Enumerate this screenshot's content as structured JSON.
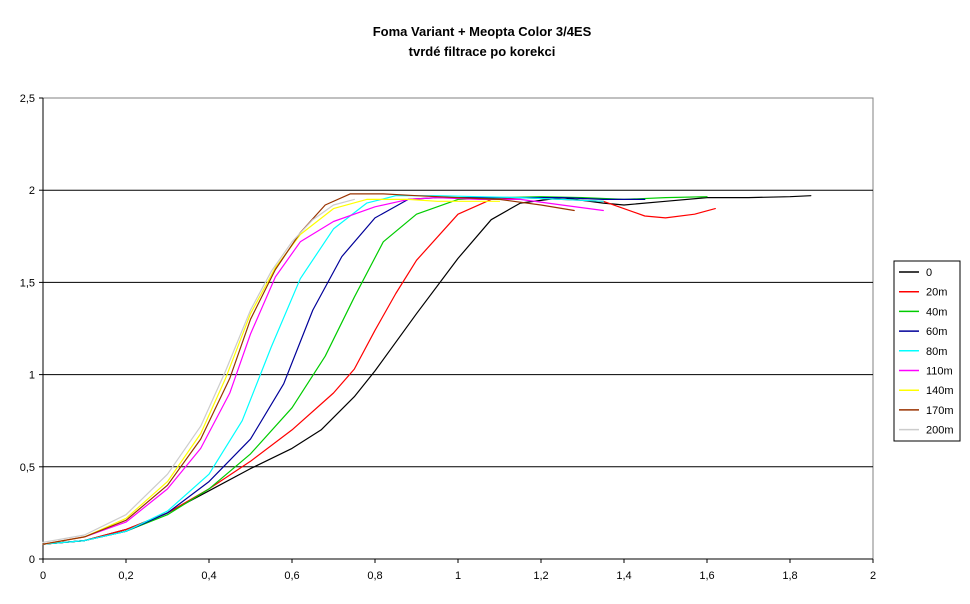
{
  "chart_data": {
    "type": "line",
    "title": "Foma Variant + Meopta Color 3/4ES",
    "subtitle": "tvrdé filtrace po korekci",
    "xlabel": "",
    "ylabel": "",
    "xlim": [
      0,
      2
    ],
    "ylim": [
      0,
      2.5
    ],
    "x_ticks": [
      0,
      0.2,
      0.4,
      0.6,
      0.8,
      1,
      1.2,
      1.4,
      1.6,
      1.8,
      2
    ],
    "x_tick_labels": [
      "0",
      "0,2",
      "0,4",
      "0,6",
      "0,8",
      "1",
      "1,2",
      "1,4",
      "1,6",
      "1,8",
      "2"
    ],
    "y_ticks": [
      0,
      0.5,
      1,
      1.5,
      2,
      2.5
    ],
    "y_tick_labels": [
      "0",
      "0,5",
      "1",
      "1,5",
      "2",
      "2,5"
    ],
    "grid": "horizontal",
    "legend_position": "right",
    "series": [
      {
        "name": "0",
        "color": "#000000",
        "points": [
          [
            0,
            0.08
          ],
          [
            0.1,
            0.1
          ],
          [
            0.2,
            0.16
          ],
          [
            0.3,
            0.25
          ],
          [
            0.4,
            0.37
          ],
          [
            0.5,
            0.49
          ],
          [
            0.6,
            0.6
          ],
          [
            0.67,
            0.7
          ],
          [
            0.75,
            0.88
          ],
          [
            0.8,
            1.02
          ],
          [
            0.9,
            1.33
          ],
          [
            1.0,
            1.63
          ],
          [
            1.08,
            1.84
          ],
          [
            1.15,
            1.93
          ],
          [
            1.25,
            1.96
          ],
          [
            1.35,
            1.93
          ],
          [
            1.4,
            1.92
          ],
          [
            1.5,
            1.94
          ],
          [
            1.6,
            1.96
          ],
          [
            1.7,
            1.96
          ],
          [
            1.8,
            1.965
          ],
          [
            1.85,
            1.97
          ]
        ]
      },
      {
        "name": "20m",
        "color": "#ff0000",
        "points": [
          [
            0,
            0.08
          ],
          [
            0.1,
            0.1
          ],
          [
            0.2,
            0.16
          ],
          [
            0.3,
            0.25
          ],
          [
            0.4,
            0.38
          ],
          [
            0.5,
            0.53
          ],
          [
            0.6,
            0.7
          ],
          [
            0.7,
            0.9
          ],
          [
            0.75,
            1.03
          ],
          [
            0.8,
            1.24
          ],
          [
            0.85,
            1.44
          ],
          [
            0.9,
            1.62
          ],
          [
            1.0,
            1.87
          ],
          [
            1.08,
            1.95
          ],
          [
            1.15,
            1.96
          ],
          [
            1.25,
            1.95
          ],
          [
            1.35,
            1.94
          ],
          [
            1.45,
            1.86
          ],
          [
            1.5,
            1.85
          ],
          [
            1.57,
            1.87
          ],
          [
            1.62,
            1.9
          ]
        ]
      },
      {
        "name": "40m",
        "color": "#00cc00",
        "points": [
          [
            0,
            0.08
          ],
          [
            0.1,
            0.1
          ],
          [
            0.2,
            0.15
          ],
          [
            0.3,
            0.24
          ],
          [
            0.4,
            0.38
          ],
          [
            0.5,
            0.57
          ],
          [
            0.6,
            0.82
          ],
          [
            0.68,
            1.1
          ],
          [
            0.75,
            1.42
          ],
          [
            0.82,
            1.72
          ],
          [
            0.9,
            1.87
          ],
          [
            1.0,
            1.95
          ],
          [
            1.1,
            1.96
          ],
          [
            1.2,
            1.965
          ],
          [
            1.3,
            1.96
          ],
          [
            1.4,
            1.95
          ],
          [
            1.5,
            1.96
          ],
          [
            1.6,
            1.965
          ]
        ]
      },
      {
        "name": "60m",
        "color": "#000099",
        "points": [
          [
            0,
            0.08
          ],
          [
            0.1,
            0.1
          ],
          [
            0.2,
            0.15
          ],
          [
            0.3,
            0.25
          ],
          [
            0.4,
            0.42
          ],
          [
            0.5,
            0.65
          ],
          [
            0.58,
            0.95
          ],
          [
            0.65,
            1.35
          ],
          [
            0.72,
            1.64
          ],
          [
            0.8,
            1.85
          ],
          [
            0.88,
            1.95
          ],
          [
            0.95,
            1.96
          ],
          [
            1.05,
            1.96
          ],
          [
            1.15,
            1.96
          ],
          [
            1.25,
            1.96
          ],
          [
            1.35,
            1.95
          ],
          [
            1.45,
            1.95
          ]
        ]
      },
      {
        "name": "80m",
        "color": "#00ffff",
        "points": [
          [
            0,
            0.08
          ],
          [
            0.1,
            0.1
          ],
          [
            0.2,
            0.15
          ],
          [
            0.3,
            0.26
          ],
          [
            0.4,
            0.46
          ],
          [
            0.48,
            0.75
          ],
          [
            0.55,
            1.15
          ],
          [
            0.62,
            1.52
          ],
          [
            0.7,
            1.79
          ],
          [
            0.78,
            1.93
          ],
          [
            0.85,
            1.97
          ],
          [
            0.95,
            1.97
          ],
          [
            1.05,
            1.965
          ],
          [
            1.15,
            1.96
          ],
          [
            1.25,
            1.95
          ],
          [
            1.35,
            1.94
          ]
        ]
      },
      {
        "name": "110m",
        "color": "#ff00ff",
        "points": [
          [
            0,
            0.08
          ],
          [
            0.1,
            0.12
          ],
          [
            0.2,
            0.2
          ],
          [
            0.3,
            0.38
          ],
          [
            0.38,
            0.6
          ],
          [
            0.45,
            0.9
          ],
          [
            0.5,
            1.22
          ],
          [
            0.56,
            1.53
          ],
          [
            0.62,
            1.72
          ],
          [
            0.7,
            1.83
          ],
          [
            0.8,
            1.91
          ],
          [
            0.88,
            1.95
          ],
          [
            0.95,
            1.96
          ],
          [
            1.05,
            1.95
          ],
          [
            1.15,
            1.95
          ],
          [
            1.25,
            1.92
          ],
          [
            1.35,
            1.89
          ]
        ]
      },
      {
        "name": "140m",
        "color": "#ffff00",
        "points": [
          [
            0,
            0.08
          ],
          [
            0.1,
            0.12
          ],
          [
            0.2,
            0.22
          ],
          [
            0.3,
            0.42
          ],
          [
            0.38,
            0.68
          ],
          [
            0.44,
            0.98
          ],
          [
            0.5,
            1.33
          ],
          [
            0.56,
            1.58
          ],
          [
            0.62,
            1.76
          ],
          [
            0.7,
            1.9
          ],
          [
            0.78,
            1.95
          ],
          [
            0.88,
            1.95
          ],
          [
            0.95,
            1.94
          ],
          [
            1.05,
            1.94
          ],
          [
            1.1,
            1.94
          ]
        ]
      },
      {
        "name": "170m",
        "color": "#993300",
        "points": [
          [
            0,
            0.08
          ],
          [
            0.1,
            0.12
          ],
          [
            0.2,
            0.21
          ],
          [
            0.3,
            0.4
          ],
          [
            0.38,
            0.65
          ],
          [
            0.45,
            0.98
          ],
          [
            0.5,
            1.3
          ],
          [
            0.56,
            1.57
          ],
          [
            0.62,
            1.77
          ],
          [
            0.68,
            1.92
          ],
          [
            0.74,
            1.98
          ],
          [
            0.82,
            1.98
          ],
          [
            0.9,
            1.97
          ],
          [
            1.0,
            1.96
          ],
          [
            1.1,
            1.95
          ],
          [
            1.2,
            1.92
          ],
          [
            1.28,
            1.89
          ]
        ]
      },
      {
        "name": "200m",
        "color": "#cccccc",
        "points": [
          [
            0,
            0.09
          ],
          [
            0.1,
            0.13
          ],
          [
            0.2,
            0.24
          ],
          [
            0.3,
            0.46
          ],
          [
            0.38,
            0.72
          ],
          [
            0.44,
            1.02
          ],
          [
            0.5,
            1.35
          ],
          [
            0.55,
            1.56
          ],
          [
            0.6,
            1.72
          ],
          [
            0.65,
            1.84
          ],
          [
            0.7,
            1.92
          ],
          [
            0.75,
            1.95
          ]
        ]
      }
    ]
  }
}
